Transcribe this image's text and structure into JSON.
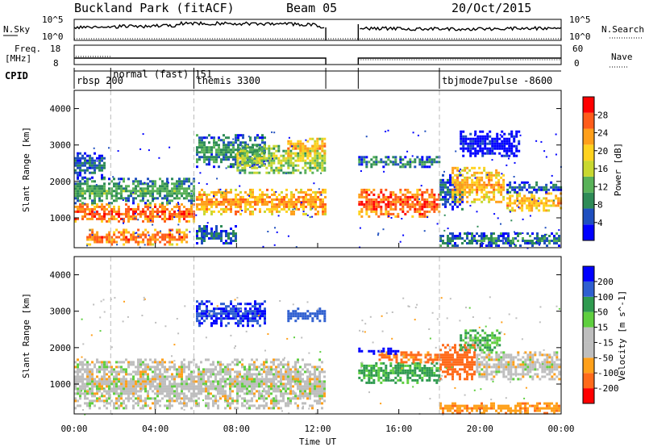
{
  "header": {
    "station": "Buckland Park (fitACF)",
    "beam": "Beam 05",
    "date": "20/Oct/2015"
  },
  "strip_labels": {
    "nsky": "N.Sky",
    "nsky_hi": "10^5",
    "nsky_lo": "10^0",
    "nsearch": "N.Search",
    "nsearch_hi": "10^5",
    "nsearch_lo": "10^0",
    "freq": "Freq.",
    "freq_unit": "[MHz]",
    "freq_hi": "18",
    "freq_lo": "8",
    "nave": "Nave",
    "nave_hi": "60",
    "nave_lo": "0",
    "cpid": "CPID"
  },
  "cpid_segments": [
    {
      "label": "rbsp 200",
      "start_hour": 0.0
    },
    {
      "label": "normal (fast) 151",
      "start_hour": 1.8
    },
    {
      "label": "themis 3300",
      "start_hour": 5.9
    },
    {
      "label": "tbjmode7pulse -8600",
      "start_hour": 18.0
    }
  ],
  "colors": {
    "power_scale": [
      "#0000ff",
      "#1f4fbf",
      "#2e8b57",
      "#59b259",
      "#c8d830",
      "#ffd21e",
      "#ff9f1a",
      "#ff5c1a",
      "#ff0000"
    ],
    "velocity_scale": [
      "#0000ff",
      "#2f5fd0",
      "#2f9a4f",
      "#5fcf3f",
      "#bebebe",
      "#bebebe",
      "#ffa01a",
      "#ff6a1a",
      "#ff0000"
    ]
  },
  "chart_data": [
    {
      "type": "heatmap",
      "panel": "power",
      "ylabel": "Slant Range [km]",
      "ylim": [
        180,
        4500
      ],
      "yticks": [
        1000,
        2000,
        3000,
        4000
      ],
      "xlim": [
        0,
        24
      ],
      "colorbar_label": "Power [dB]",
      "colorbar_ticks": [
        "4",
        "8",
        "12",
        "16",
        "20",
        "24",
        "28"
      ],
      "bands": [
        {
          "t0": 0.0,
          "t1": 6.0,
          "r0": 900,
          "r1": 1400,
          "v": 27
        },
        {
          "t0": 0.6,
          "t1": 5.6,
          "r0": 250,
          "r1": 700,
          "v": 26
        },
        {
          "t0": 0.0,
          "t1": 6.0,
          "r0": 1400,
          "r1": 2100,
          "v": 13
        },
        {
          "t0": 0.0,
          "t1": 1.6,
          "r0": 2100,
          "r1": 2800,
          "v": 9
        },
        {
          "t0": 6.0,
          "t1": 12.4,
          "r0": 1100,
          "r1": 1800,
          "v": 24
        },
        {
          "t0": 6.0,
          "t1": 9.5,
          "r0": 2400,
          "r1": 3300,
          "v": 12
        },
        {
          "t0": 8.0,
          "t1": 12.4,
          "r0": 2200,
          "r1": 3000,
          "v": 17
        },
        {
          "t0": 10.5,
          "t1": 12.4,
          "r0": 2700,
          "r1": 3200,
          "v": 23
        },
        {
          "t0": 6.0,
          "t1": 8.0,
          "r0": 250,
          "r1": 800,
          "v": 9
        },
        {
          "t0": 14.0,
          "t1": 18.0,
          "r0": 1000,
          "r1": 1800,
          "v": 27
        },
        {
          "t0": 14.0,
          "t1": 18.0,
          "r0": 2400,
          "r1": 2700,
          "v": 11
        },
        {
          "t0": 18.0,
          "t1": 19.2,
          "r0": 1200,
          "r1": 2200,
          "v": 9
        },
        {
          "t0": 18.6,
          "t1": 21.2,
          "r0": 1400,
          "r1": 2400,
          "v": 23
        },
        {
          "t0": 18.0,
          "t1": 24.0,
          "r0": 200,
          "r1": 600,
          "v": 11
        },
        {
          "t0": 21.3,
          "t1": 24.0,
          "r0": 1200,
          "r1": 1700,
          "v": 23
        },
        {
          "t0": 21.3,
          "t1": 24.0,
          "r0": 1700,
          "r1": 2000,
          "v": 9
        },
        {
          "t0": 19.0,
          "t1": 22.0,
          "r0": 2700,
          "r1": 3400,
          "v": 5
        }
      ]
    },
    {
      "type": "heatmap",
      "panel": "velocity",
      "ylabel": "Slant Range [km]",
      "xlabel": "Time UT",
      "ylim": [
        180,
        4500
      ],
      "yticks": [
        1000,
        2000,
        3000,
        4000
      ],
      "xlim": [
        0,
        24
      ],
      "xticks": [
        "00:00",
        "04:00",
        "08:00",
        "12:00",
        "16:00",
        "20:00",
        "00:00"
      ],
      "colorbar_label": "Velocity [m s^-1]",
      "colorbar_ticks": [
        "200",
        "100",
        "50",
        "15",
        "-15",
        "-50",
        "-100",
        "-200"
      ],
      "bands": [
        {
          "t0": 0.0,
          "t1": 12.4,
          "r0": 300,
          "r1": 1700,
          "v": 0
        },
        {
          "t0": 6.0,
          "t1": 9.5,
          "r0": 2600,
          "r1": 3300,
          "v": 150
        },
        {
          "t0": 10.5,
          "t1": 12.4,
          "r0": 2700,
          "r1": 3100,
          "v": 120
        },
        {
          "t0": 14.0,
          "t1": 18.0,
          "r0": 1000,
          "r1": 1600,
          "v": 40
        },
        {
          "t0": 15.0,
          "t1": 18.0,
          "r0": 1600,
          "r1": 1900,
          "v": -60
        },
        {
          "t0": 18.0,
          "t1": 19.8,
          "r0": 1100,
          "r1": 2100,
          "v": -70
        },
        {
          "t0": 19.8,
          "t1": 24.0,
          "r0": 1100,
          "r1": 1900,
          "v": 0
        },
        {
          "t0": 19.0,
          "t1": 21.0,
          "r0": 1900,
          "r1": 2500,
          "v": 30
        },
        {
          "t0": 18.0,
          "t1": 24.0,
          "r0": 200,
          "r1": 500,
          "v": -40
        },
        {
          "t0": 14.0,
          "t1": 16.0,
          "r0": 1800,
          "r1": 2000,
          "v": 180
        }
      ]
    }
  ]
}
